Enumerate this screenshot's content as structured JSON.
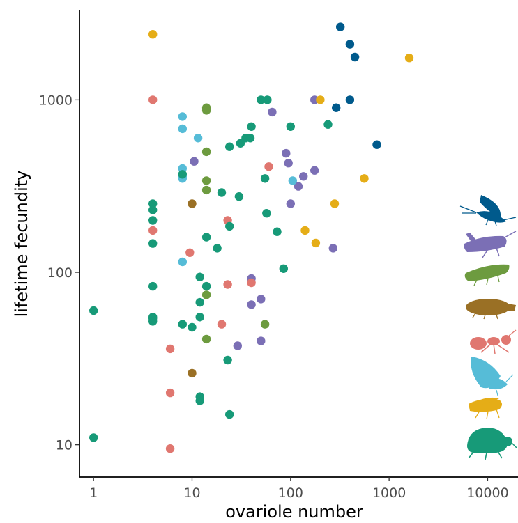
{
  "chart_data": {
    "type": "scatter",
    "title": "",
    "xlabel": "ovariole number",
    "ylabel": "lifetime fecundity",
    "x_scale": "log10",
    "y_scale": "log10",
    "xlim": [
      0.72,
      20000
    ],
    "ylim": [
      6.5,
      3300
    ],
    "x_ticks": [
      1,
      10,
      100,
      1000,
      10000
    ],
    "x_tick_labels": [
      "1",
      "10",
      "100",
      "1000",
      "10000"
    ],
    "y_ticks": [
      10,
      100,
      1000
    ],
    "y_tick_labels": [
      "10",
      "100",
      "1000"
    ],
    "grid": false,
    "legend": "silhouettes at right edge, no text",
    "groups": [
      {
        "color": "#005a8c",
        "silhouette": "mayfly-icon",
        "points": [
          [
            320,
            2650
          ],
          [
            400,
            2100
          ],
          [
            450,
            1770
          ],
          [
            400,
            1000
          ],
          [
            290,
            900
          ],
          [
            750,
            550
          ]
        ]
      },
      {
        "color": "#7b6fb5",
        "silhouette": "grasshopper-icon",
        "points": [
          [
            175,
            1000
          ],
          [
            65,
            850
          ],
          [
            10.5,
            440
          ],
          [
            90,
            490
          ],
          [
            95,
            430
          ],
          [
            135,
            360
          ],
          [
            120,
            315
          ],
          [
            175,
            390
          ],
          [
            100,
            250
          ],
          [
            270,
            138
          ],
          [
            40,
            92
          ],
          [
            40,
            65
          ],
          [
            50,
            70
          ],
          [
            29,
            37.5
          ],
          [
            50,
            40
          ]
        ]
      },
      {
        "color": "#6d9b3f",
        "silhouette": "leafhopper-icon",
        "points": [
          [
            14,
            900
          ],
          [
            14,
            870
          ],
          [
            14,
            500
          ],
          [
            14,
            340
          ],
          [
            14,
            300
          ],
          [
            14,
            74
          ],
          [
            14,
            41
          ],
          [
            55,
            50
          ]
        ]
      },
      {
        "color": "#9a7025",
        "silhouette": "beetle-larva-icon",
        "points": [
          [
            10,
            250
          ],
          [
            10,
            26
          ]
        ]
      },
      {
        "color": "#e07770",
        "silhouette": "ant-icon",
        "points": [
          [
            4,
            1000
          ],
          [
            60,
            410
          ],
          [
            23,
            200
          ],
          [
            4,
            175
          ],
          [
            9.5,
            130
          ],
          [
            23,
            85
          ],
          [
            40,
            87
          ],
          [
            20,
            50
          ],
          [
            6,
            36
          ],
          [
            6,
            20
          ],
          [
            6,
            9.5
          ]
        ]
      },
      {
        "color": "#56bcd7",
        "silhouette": "moth-icon",
        "points": [
          [
            8,
            800
          ],
          [
            8,
            680
          ],
          [
            11.5,
            600
          ],
          [
            8,
            400
          ],
          [
            8,
            360
          ],
          [
            8,
            350
          ],
          [
            105,
            340
          ],
          [
            8,
            115
          ]
        ]
      },
      {
        "color": "#e5ad17",
        "silhouette": "fly-icon",
        "points": [
          [
            4,
            2400
          ],
          [
            1600,
            1750
          ],
          [
            200,
            1000
          ],
          [
            560,
            350
          ],
          [
            280,
            250
          ],
          [
            140,
            175
          ],
          [
            180,
            148
          ]
        ]
      },
      {
        "color": "#179a78",
        "silhouette": "weevil-icon",
        "points": [
          [
            50,
            1000
          ],
          [
            58,
            1000
          ],
          [
            40,
            700
          ],
          [
            100,
            700
          ],
          [
            240,
            720
          ],
          [
            35,
            600
          ],
          [
            39,
            600
          ],
          [
            31,
            560
          ],
          [
            24,
            535
          ],
          [
            8,
            370
          ],
          [
            20,
            290
          ],
          [
            30,
            275
          ],
          [
            55,
            350
          ],
          [
            4,
            250
          ],
          [
            4,
            230
          ],
          [
            4,
            200
          ],
          [
            57,
            220
          ],
          [
            73,
            172
          ],
          [
            24,
            185
          ],
          [
            14,
            160
          ],
          [
            18,
            138
          ],
          [
            4,
            147
          ],
          [
            85,
            105
          ],
          [
            12,
            94
          ],
          [
            4,
            83
          ],
          [
            14,
            83
          ],
          [
            12,
            67
          ],
          [
            1,
            60
          ],
          [
            4,
            55
          ],
          [
            4,
            54
          ],
          [
            4,
            52
          ],
          [
            12,
            55
          ],
          [
            8,
            50
          ],
          [
            10,
            48
          ],
          [
            23,
            31
          ],
          [
            12,
            19
          ],
          [
            12,
            18
          ],
          [
            24,
            15
          ],
          [
            1,
            11
          ]
        ]
      }
    ]
  }
}
